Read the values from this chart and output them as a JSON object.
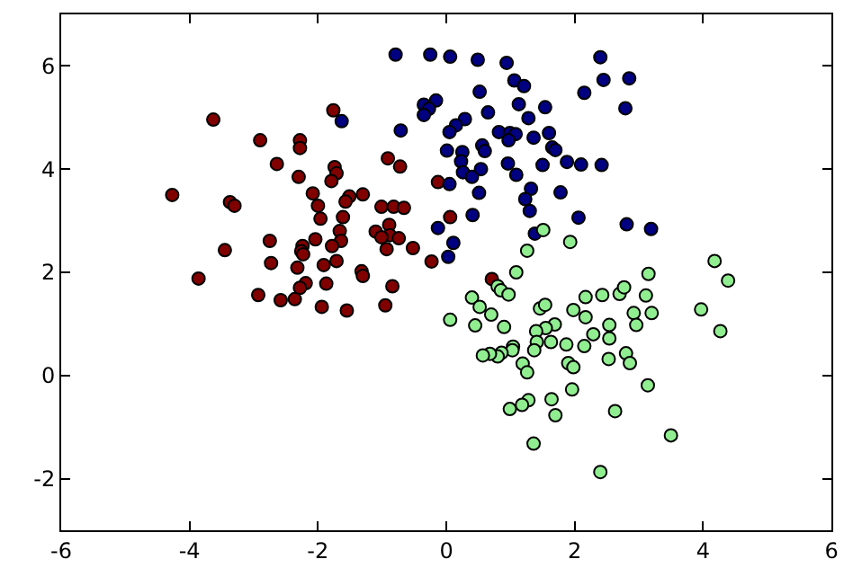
{
  "chart_data": {
    "type": "scatter",
    "marker": "circle",
    "xlim": [
      -6,
      6
    ],
    "ylim": [
      -3,
      7
    ],
    "xticks": [
      -6,
      -4,
      -2,
      0,
      2,
      4,
      6
    ],
    "yticks": [
      -2,
      0,
      2,
      4,
      6
    ],
    "series": [
      {
        "color": "#800000",
        "x": [
          -3.63,
          -1.76,
          -2.9,
          -2.28,
          -2.28,
          -2.64,
          -1.74,
          -1.71,
          -2.3,
          -1.79,
          -4.27,
          -3.37,
          -3.3,
          -2.08,
          -1.51,
          -1.3,
          -1.57,
          -2.0,
          -1.96,
          -1.61,
          -1.01,
          -0.82,
          -0.66,
          -0.91,
          -0.72,
          -0.13,
          0.06,
          -0.89,
          -1.66,
          -1.1,
          -0.88,
          -1.01,
          -0.74,
          -1.64,
          -2.04,
          -2.75,
          -1.78,
          -2.24,
          -3.45,
          -2.26,
          -2.23,
          -0.93,
          -0.52,
          -2.73,
          -1.71,
          -1.91,
          -2.32,
          -1.32,
          -1.3,
          -3.86,
          -2.19,
          -2.28,
          -1.87,
          -0.84,
          -0.23,
          -2.93,
          -2.58,
          -2.36,
          -1.94,
          -1.55,
          -0.95,
          0.71
        ],
        "values": [
          4.96,
          5.14,
          4.56,
          4.56,
          4.41,
          4.1,
          4.04,
          3.92,
          3.85,
          3.77,
          3.5,
          3.36,
          3.29,
          3.53,
          3.47,
          3.51,
          3.37,
          3.29,
          3.04,
          3.07,
          3.27,
          3.27,
          3.25,
          4.21,
          4.05,
          3.75,
          3.07,
          2.92,
          2.8,
          2.79,
          2.72,
          2.68,
          2.66,
          2.61,
          2.64,
          2.61,
          2.51,
          2.51,
          2.43,
          2.41,
          2.35,
          2.45,
          2.47,
          2.18,
          2.22,
          2.14,
          2.09,
          2.02,
          1.93,
          1.88,
          1.79,
          1.7,
          1.78,
          1.73,
          2.21,
          1.56,
          1.46,
          1.48,
          1.33,
          1.26,
          1.36,
          1.87
        ]
      },
      {
        "color": "#000080",
        "x": [
          -0.79,
          -0.25,
          0.06,
          0.49,
          0.94,
          1.06,
          1.21,
          2.4,
          2.45,
          2.85,
          2.15,
          2.79,
          0.52,
          -0.16,
          -0.35,
          -0.27,
          -0.35,
          1.13,
          1.54,
          0.65,
          1.28,
          0.29,
          0.15,
          0.05,
          -0.71,
          0.82,
          0.99,
          1.08,
          1.6,
          1.36,
          0.97,
          0.56,
          0.6,
          0.01,
          0.25,
          1.65,
          1.7,
          0.23,
          0.96,
          1.5,
          1.88,
          2.1,
          2.42,
          0.54,
          0.26,
          0.4,
          1.09,
          0.05,
          1.32,
          1.23,
          0.51,
          1.78,
          1.3,
          0.41,
          2.06,
          -0.13,
          2.81,
          3.19,
          1.38,
          0.11,
          0.03,
          -1.63
        ],
        "values": [
          6.22,
          6.22,
          6.18,
          6.12,
          6.06,
          5.72,
          5.61,
          6.17,
          5.73,
          5.76,
          5.48,
          5.18,
          5.5,
          5.33,
          5.25,
          5.17,
          5.05,
          5.26,
          5.2,
          5.1,
          4.99,
          4.97,
          4.85,
          4.72,
          4.75,
          4.72,
          4.7,
          4.68,
          4.7,
          4.61,
          4.56,
          4.46,
          4.35,
          4.36,
          4.33,
          4.42,
          4.37,
          4.15,
          4.11,
          4.08,
          4.14,
          4.09,
          4.08,
          4.0,
          3.94,
          3.85,
          3.89,
          3.71,
          3.62,
          3.42,
          3.54,
          3.55,
          3.19,
          3.11,
          3.06,
          2.86,
          2.93,
          2.84,
          2.75,
          2.57,
          2.3,
          4.93
        ]
      },
      {
        "color": "#90ee90",
        "x": [
          1.51,
          1.93,
          1.26,
          1.09,
          4.18,
          4.39,
          3.15,
          0.8,
          0.85,
          0.97,
          0.4,
          0.52,
          0.06,
          0.7,
          0.45,
          0.9,
          1.46,
          1.54,
          1.98,
          2.17,
          2.43,
          2.7,
          2.77,
          3.11,
          2.92,
          3.2,
          2.96,
          2.17,
          2.54,
          2.29,
          2.54,
          2.15,
          1.87,
          1.69,
          1.55,
          1.4,
          1.63,
          1.41,
          1.37,
          1.04,
          1.03,
          0.86,
          0.8,
          0.68,
          0.57,
          3.97,
          4.27,
          1.19,
          1.26,
          1.9,
          1.98,
          2.53,
          2.8,
          2.86,
          1.96,
          3.14,
          1.64,
          1.7,
          1.28,
          1.18,
          0.99,
          2.63,
          1.36,
          3.5,
          2.4
        ],
        "values": [
          2.82,
          2.59,
          2.42,
          2.0,
          2.22,
          1.84,
          1.97,
          1.73,
          1.65,
          1.57,
          1.51,
          1.33,
          1.08,
          1.18,
          0.97,
          0.94,
          1.3,
          1.37,
          1.27,
          1.52,
          1.56,
          1.58,
          1.71,
          1.55,
          1.21,
          1.21,
          0.98,
          1.13,
          0.98,
          0.8,
          0.72,
          0.57,
          0.6,
          0.99,
          0.92,
          0.86,
          0.65,
          0.65,
          0.49,
          0.56,
          0.49,
          0.44,
          0.37,
          0.42,
          0.39,
          1.28,
          0.86,
          0.23,
          0.06,
          0.24,
          0.16,
          0.32,
          0.43,
          0.24,
          -0.27,
          -0.19,
          -0.46,
          -0.77,
          -0.48,
          -0.57,
          -0.65,
          -0.69,
          -1.32,
          -1.16,
          -1.87
        ]
      }
    ]
  }
}
